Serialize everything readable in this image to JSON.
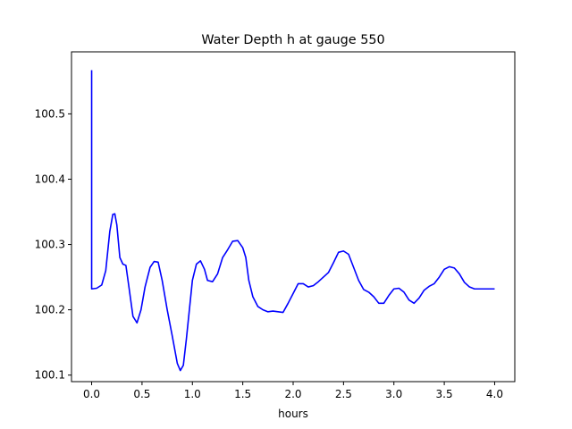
{
  "chart_data": {
    "type": "line",
    "title": "Water Depth h at gauge 550",
    "xlabel": "hours",
    "ylabel": "",
    "xlim": [
      -0.2,
      4.2
    ],
    "ylim": [
      100.09,
      100.595
    ],
    "xticks": [
      0.0,
      0.5,
      1.0,
      1.5,
      2.0,
      2.5,
      3.0,
      3.5,
      4.0
    ],
    "xtick_labels": [
      "0.0",
      "0.5",
      "1.0",
      "1.5",
      "2.0",
      "2.5",
      "3.0",
      "3.5",
      "4.0"
    ],
    "yticks": [
      100.1,
      100.2,
      100.3,
      100.4,
      100.5
    ],
    "ytick_labels": [
      "100.1",
      "100.2",
      "100.3",
      "100.4",
      "100.5"
    ],
    "grid": false,
    "series": [
      {
        "color": "#0000ff",
        "x": [
          0.0,
          0.0,
          0.0,
          0.05,
          0.1,
          0.14,
          0.18,
          0.21,
          0.23,
          0.25,
          0.28,
          0.31,
          0.34,
          0.37,
          0.41,
          0.45,
          0.49,
          0.53,
          0.58,
          0.62,
          0.66,
          0.7,
          0.75,
          0.8,
          0.85,
          0.88,
          0.91,
          0.94,
          0.97,
          1.0,
          1.04,
          1.08,
          1.12,
          1.15,
          1.2,
          1.25,
          1.3,
          1.35,
          1.4,
          1.45,
          1.5,
          1.53,
          1.56,
          1.6,
          1.65,
          1.7,
          1.75,
          1.8,
          1.85,
          1.9,
          1.95,
          2.0,
          2.05,
          2.1,
          2.15,
          2.2,
          2.25,
          2.3,
          2.35,
          2.4,
          2.45,
          2.5,
          2.55,
          2.6,
          2.65,
          2.7,
          2.75,
          2.8,
          2.85,
          2.9,
          2.95,
          3.0,
          3.05,
          3.1,
          3.15,
          3.2,
          3.25,
          3.3,
          3.35,
          3.4,
          3.45,
          3.5,
          3.55,
          3.6,
          3.65,
          3.7,
          3.75,
          3.8,
          3.85,
          3.9,
          3.95,
          4.0
        ],
        "y": [
          100.567,
          100.232,
          100.232,
          100.233,
          100.238,
          100.26,
          100.32,
          100.346,
          100.347,
          100.33,
          100.28,
          100.27,
          100.268,
          100.235,
          100.19,
          100.18,
          100.2,
          100.235,
          100.265,
          100.274,
          100.273,
          100.245,
          100.2,
          100.16,
          100.118,
          100.107,
          100.115,
          100.155,
          100.2,
          100.245,
          100.27,
          100.275,
          100.262,
          100.245,
          100.243,
          100.255,
          100.28,
          100.292,
          100.305,
          100.306,
          100.295,
          100.28,
          100.245,
          100.22,
          100.205,
          100.2,
          100.197,
          100.198,
          100.197,
          100.196,
          100.21,
          100.225,
          100.24,
          100.24,
          100.235,
          100.237,
          100.243,
          100.25,
          100.257,
          100.272,
          100.288,
          100.29,
          100.285,
          100.265,
          100.245,
          100.231,
          100.227,
          100.22,
          100.21,
          100.21,
          100.222,
          100.232,
          100.233,
          100.227,
          100.215,
          100.21,
          100.218,
          100.23,
          100.236,
          100.24,
          100.25,
          100.262,
          100.266,
          100.264,
          100.255,
          100.242,
          100.235,
          100.232,
          100.232,
          100.232,
          100.232,
          100.232
        ]
      }
    ]
  }
}
